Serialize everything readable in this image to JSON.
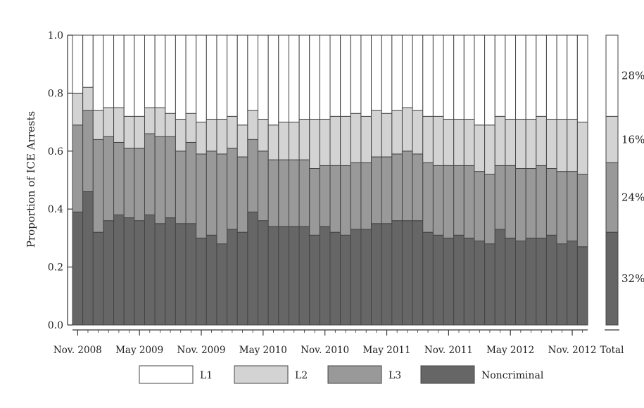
{
  "chart_data": {
    "type": "bar",
    "stacked": true,
    "ylabel": "Proportion of ICE Arrests",
    "ylim": [
      0,
      1
    ],
    "yticks": [
      "0.0",
      "0.2",
      "0.4",
      "0.6",
      "0.8",
      "1.0"
    ],
    "x_tick_labels": [
      "Nov. 2008",
      "May 2009",
      "Nov. 2009",
      "May 2010",
      "Nov. 2010",
      "May 2011",
      "Nov. 2011",
      "May 2012",
      "Nov. 2012"
    ],
    "total_label": "Total",
    "colors": {
      "L1": "#ffffff",
      "L2": "#d3d3d3",
      "L3": "#999999",
      "Noncriminal": "#666666",
      "stroke": "#444444"
    },
    "series": [
      {
        "name": "Noncriminal",
        "values": [
          0.39,
          0.46,
          0.32,
          0.36,
          0.38,
          0.37,
          0.36,
          0.38,
          0.35,
          0.37,
          0.35,
          0.35,
          0.3,
          0.31,
          0.28,
          0.33,
          0.32,
          0.39,
          0.36,
          0.34,
          0.34,
          0.34,
          0.34,
          0.31,
          0.34,
          0.32,
          0.31,
          0.33,
          0.33,
          0.35,
          0.35,
          0.36,
          0.36,
          0.36,
          0.32,
          0.31,
          0.3,
          0.31,
          0.3,
          0.29,
          0.28,
          0.33,
          0.3,
          0.29,
          0.3,
          0.3,
          0.31,
          0.28,
          0.29,
          0.27
        ]
      },
      {
        "name": "L3",
        "values": [
          0.3,
          0.28,
          0.32,
          0.29,
          0.25,
          0.24,
          0.25,
          0.28,
          0.3,
          0.28,
          0.25,
          0.28,
          0.29,
          0.29,
          0.31,
          0.28,
          0.26,
          0.25,
          0.24,
          0.23,
          0.23,
          0.23,
          0.23,
          0.23,
          0.21,
          0.23,
          0.24,
          0.23,
          0.23,
          0.23,
          0.23,
          0.23,
          0.24,
          0.23,
          0.24,
          0.24,
          0.25,
          0.24,
          0.25,
          0.24,
          0.24,
          0.22,
          0.25,
          0.25,
          0.24,
          0.25,
          0.23,
          0.25,
          0.24,
          0.25
        ]
      },
      {
        "name": "L2",
        "values": [
          0.11,
          0.08,
          0.1,
          0.1,
          0.12,
          0.11,
          0.11,
          0.09,
          0.1,
          0.08,
          0.11,
          0.1,
          0.11,
          0.11,
          0.12,
          0.11,
          0.11,
          0.1,
          0.11,
          0.12,
          0.13,
          0.13,
          0.14,
          0.17,
          0.16,
          0.17,
          0.17,
          0.17,
          0.16,
          0.16,
          0.15,
          0.15,
          0.15,
          0.15,
          0.16,
          0.17,
          0.16,
          0.16,
          0.16,
          0.16,
          0.17,
          0.17,
          0.16,
          0.17,
          0.17,
          0.17,
          0.17,
          0.18,
          0.18,
          0.18
        ]
      },
      {
        "name": "L1",
        "values": [
          0.2,
          0.18,
          0.26,
          0.25,
          0.25,
          0.28,
          0.28,
          0.25,
          0.25,
          0.27,
          0.29,
          0.27,
          0.3,
          0.29,
          0.29,
          0.28,
          0.31,
          0.26,
          0.29,
          0.31,
          0.3,
          0.3,
          0.29,
          0.29,
          0.29,
          0.28,
          0.28,
          0.27,
          0.28,
          0.26,
          0.27,
          0.26,
          0.25,
          0.26,
          0.28,
          0.28,
          0.29,
          0.29,
          0.29,
          0.31,
          0.31,
          0.28,
          0.29,
          0.29,
          0.29,
          0.28,
          0.29,
          0.29,
          0.29,
          0.3
        ]
      }
    ],
    "total": {
      "values": {
        "Noncriminal": 0.32,
        "L3": 0.24,
        "L2": 0.16,
        "L1": 0.28
      },
      "labels": {
        "L1": "28%",
        "L2": "16%",
        "L3": "24%",
        "Noncriminal": "32%"
      }
    },
    "legend": {
      "placement": "bottom",
      "entries": [
        {
          "name": "L1",
          "label": "L1"
        },
        {
          "name": "L2",
          "label": "L2"
        },
        {
          "name": "L3",
          "label": "L3"
        },
        {
          "name": "Noncriminal",
          "label": "Noncriminal"
        }
      ]
    }
  }
}
